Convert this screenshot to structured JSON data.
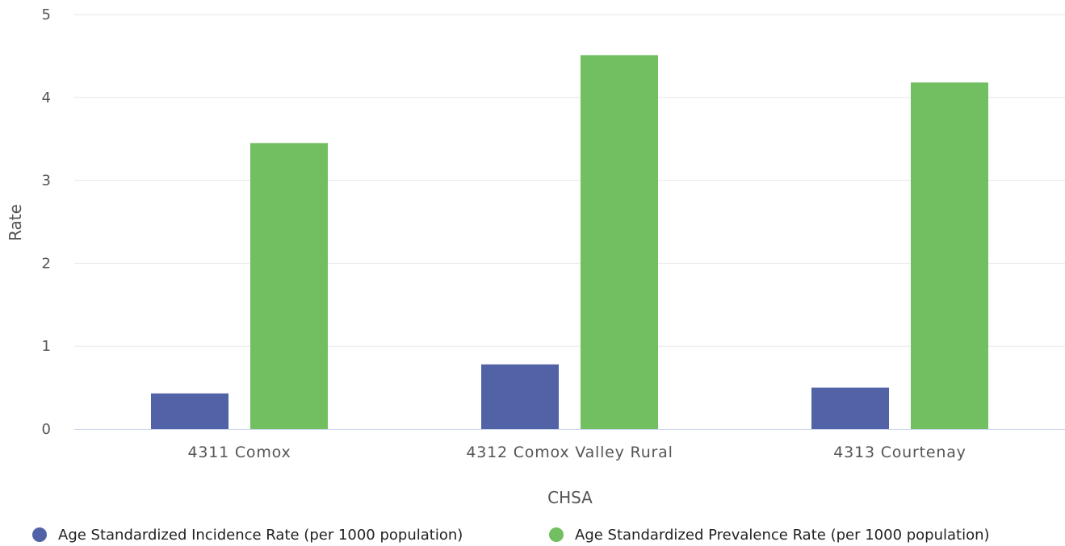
{
  "chart_data": {
    "type": "bar",
    "categories": [
      "4311 Comox",
      "4312 Comox Valley Rural",
      "4313 Courtenay"
    ],
    "series": [
      {
        "name": "Age Standardized Incidence Rate (per 1000 population)",
        "color": "#5262a6",
        "values": [
          0.43,
          0.78,
          0.5
        ]
      },
      {
        "name": "Age Standardized Prevalence Rate (per 1000 population)",
        "color": "#72bf62",
        "values": [
          3.45,
          4.51,
          4.18
        ]
      }
    ],
    "xlabel": "CHSA",
    "ylabel": "Rate",
    "ylim": [
      0,
      5
    ],
    "yticks": [
      0,
      1,
      2,
      3,
      4,
      5
    ],
    "grid": true,
    "legend": "bottom"
  }
}
